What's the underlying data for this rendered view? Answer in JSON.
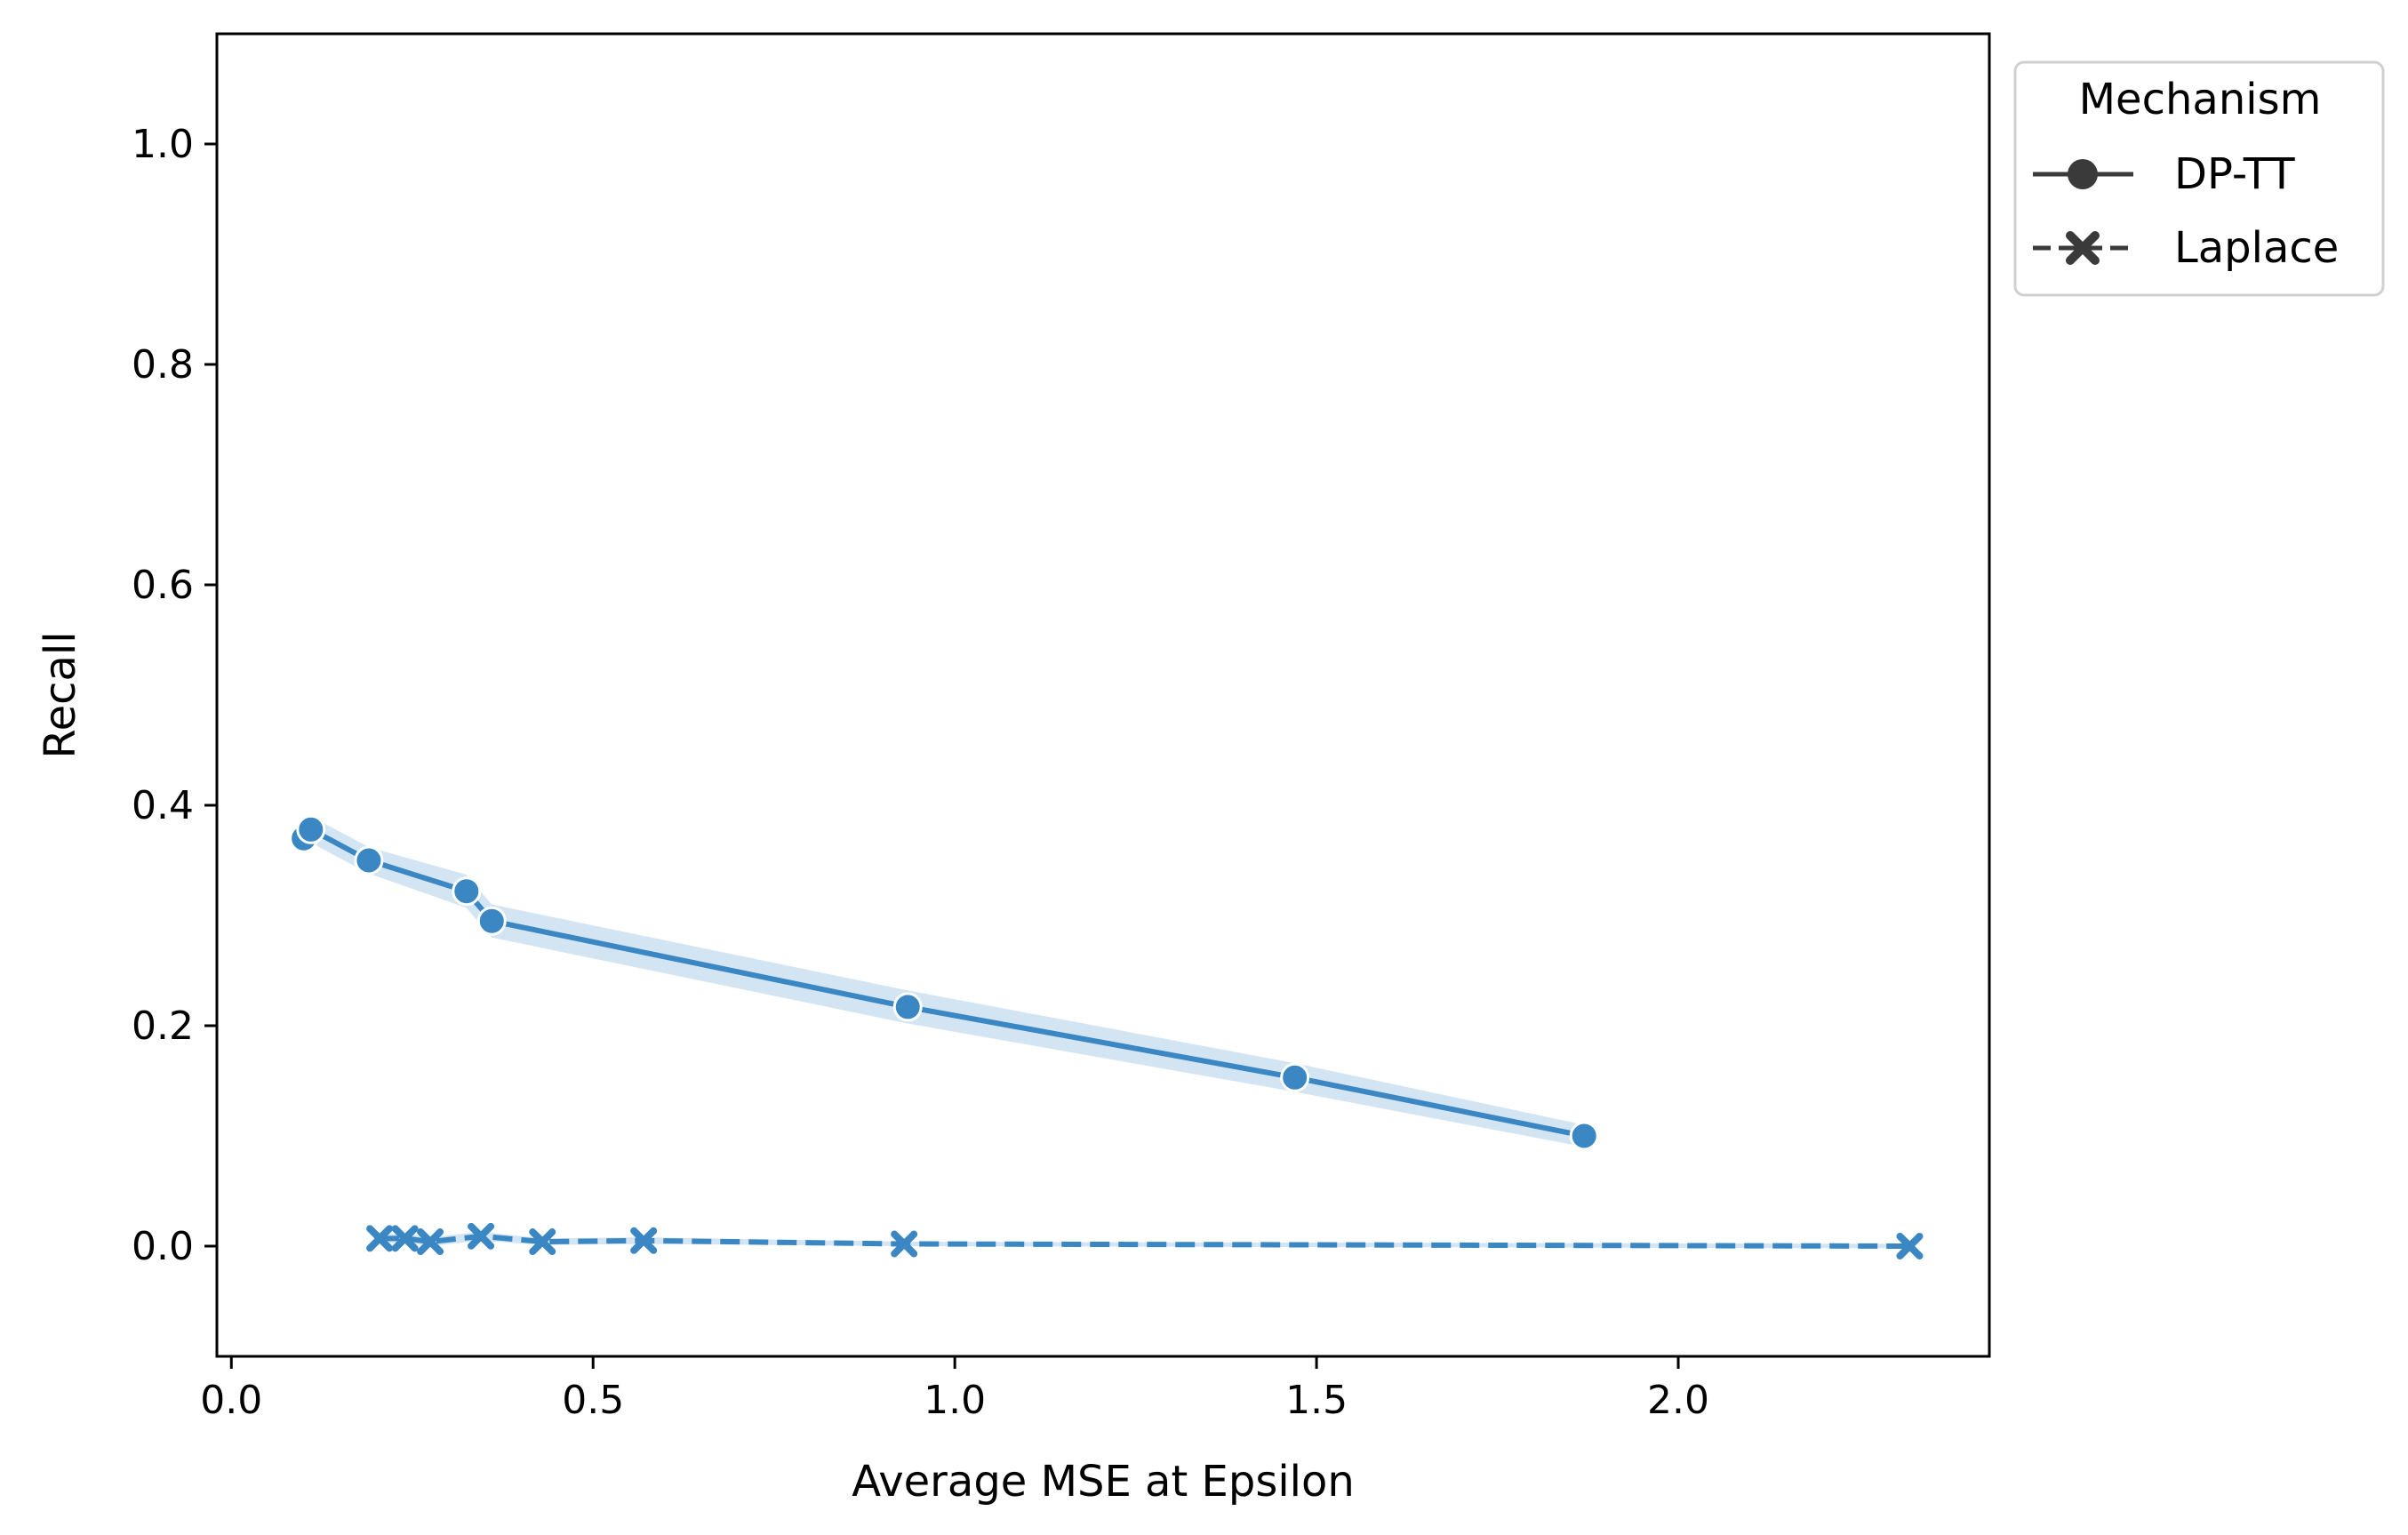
{
  "chart_data": {
    "type": "line",
    "title": "",
    "xlabel": "Average MSE at Epsilon",
    "ylabel": "Recall",
    "xlim": [
      -0.02,
      2.43
    ],
    "ylim": [
      -0.1,
      1.1
    ],
    "xticks": [
      0.0,
      0.5,
      1.0,
      1.5,
      2.0
    ],
    "xtick_labels": [
      "0.0",
      "0.5",
      "1.0",
      "1.5",
      "2.0"
    ],
    "yticks": [
      0.0,
      0.2,
      0.4,
      0.6,
      0.8,
      1.0
    ],
    "ytick_labels": [
      "0.0",
      "0.2",
      "0.4",
      "0.6",
      "0.8",
      "1.0"
    ],
    "grid": false,
    "legend": {
      "title": "Mechanism",
      "placement": "outside-top-right",
      "entries": [
        "DP-TT",
        "Laplace"
      ]
    },
    "series": [
      {
        "name": "DP-TT",
        "marker": "circle",
        "linestyle": "solid",
        "color": "#3a87c4",
        "x": [
          0.1,
          0.11,
          0.19,
          0.325,
          0.36,
          0.935,
          1.47,
          1.87
        ],
        "y": [
          0.37,
          0.378,
          0.35,
          0.322,
          0.295,
          0.217,
          0.153,
          0.1
        ],
        "ci_half_width": [
          0.012,
          0.012,
          0.012,
          0.015,
          0.015,
          0.015,
          0.013,
          0.01
        ]
      },
      {
        "name": "Laplace",
        "marker": "x",
        "linestyle": "dashed",
        "color": "#3a87c4",
        "x": [
          0.205,
          0.24,
          0.275,
          0.345,
          0.43,
          0.57,
          0.93,
          2.32
        ],
        "y": [
          0.007,
          0.007,
          0.004,
          0.009,
          0.004,
          0.005,
          0.002,
          0.0
        ],
        "ci_half_width": [
          0.004,
          0.004,
          0.004,
          0.004,
          0.003,
          0.003,
          0.002,
          0.002
        ]
      }
    ]
  },
  "colors": {
    "series": "#3a87c4",
    "band": "#aecde8",
    "legend_line": "#3a3a3a"
  }
}
